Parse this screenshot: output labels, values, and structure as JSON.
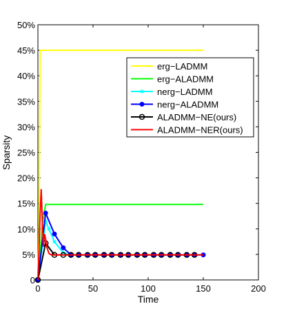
{
  "chart_data": {
    "type": "line",
    "title": "",
    "xlabel": "Time",
    "ylabel": "Sparsity",
    "xlim": [
      0,
      200
    ],
    "ylim": [
      0,
      50
    ],
    "xticks": [
      0,
      50,
      100,
      150,
      200
    ],
    "yticks": [
      0,
      5,
      10,
      15,
      20,
      25,
      30,
      35,
      40,
      45,
      50
    ],
    "xtick_labels": [
      "0",
      "50",
      "100",
      "150",
      "200"
    ],
    "ytick_labels": [
      "0",
      "5%",
      "10%",
      "15%",
      "20%",
      "25%",
      "30%",
      "35%",
      "40%",
      "45%",
      "50%"
    ],
    "grid": false,
    "legend_position": "top-right",
    "series": [
      {
        "name": "erg−LADMM",
        "color": "#ffff00",
        "marker": "none",
        "x": [
          0,
          1,
          2,
          150
        ],
        "y": [
          0,
          10,
          45,
          45
        ]
      },
      {
        "name": "erg−ALADMM",
        "color": "#00ff00",
        "marker": "none",
        "x": [
          0,
          2,
          4,
          7,
          150
        ],
        "y": [
          0,
          5,
          11,
          14.8,
          14.8
        ]
      },
      {
        "name": "nerg−LADMM",
        "color": "#00ffff",
        "marker": "star",
        "x": [
          0,
          7,
          10,
          15,
          23,
          30,
          37,
          45,
          52,
          60,
          67,
          75,
          82,
          90,
          97,
          105,
          112,
          120,
          127,
          135,
          142,
          150
        ],
        "y": [
          0,
          11.5,
          10,
          7.5,
          5.3,
          4.9,
          4.9,
          4.9,
          4.9,
          4.9,
          4.9,
          4.9,
          4.9,
          4.9,
          4.9,
          4.9,
          4.9,
          4.9,
          4.9,
          4.9,
          4.9,
          4.9
        ]
      },
      {
        "name": "nerg−ALADMM",
        "color": "#0000ff",
        "marker": "dot",
        "x": [
          0,
          7,
          15,
          23,
          30,
          37,
          45,
          52,
          60,
          67,
          75,
          82,
          90,
          97,
          105,
          112,
          120,
          127,
          135,
          142,
          150
        ],
        "y": [
          0,
          13.1,
          9,
          6.3,
          4.9,
          4.9,
          4.9,
          4.9,
          4.9,
          4.9,
          4.9,
          4.9,
          4.9,
          4.9,
          4.9,
          4.9,
          4.9,
          4.9,
          4.9,
          4.9,
          4.9
        ]
      },
      {
        "name": "ALADMM−NE(ours)",
        "color": "#000000",
        "marker": "circle",
        "x": [
          0,
          7,
          15,
          23,
          30,
          37,
          45,
          52,
          60,
          67,
          75,
          82,
          90,
          97,
          105,
          112,
          120,
          127,
          135,
          142
        ],
        "y": [
          0,
          7.2,
          4.9,
          4.9,
          4.9,
          4.9,
          4.9,
          4.9,
          4.9,
          4.9,
          4.9,
          4.9,
          4.9,
          4.9,
          4.9,
          4.9,
          4.9,
          4.9,
          4.9,
          4.9
        ]
      },
      {
        "name": "ALADMM−NER(ours)",
        "color": "#ff0000",
        "marker": "none",
        "x": [
          0,
          1,
          2,
          3,
          4,
          5,
          6,
          7,
          8,
          10,
          12,
          14,
          16,
          150
        ],
        "y": [
          0,
          6,
          13,
          17.8,
          11.5,
          6.5,
          9,
          8,
          6.5,
          5.2,
          4.9,
          4.9,
          4.9,
          4.9
        ]
      }
    ]
  }
}
